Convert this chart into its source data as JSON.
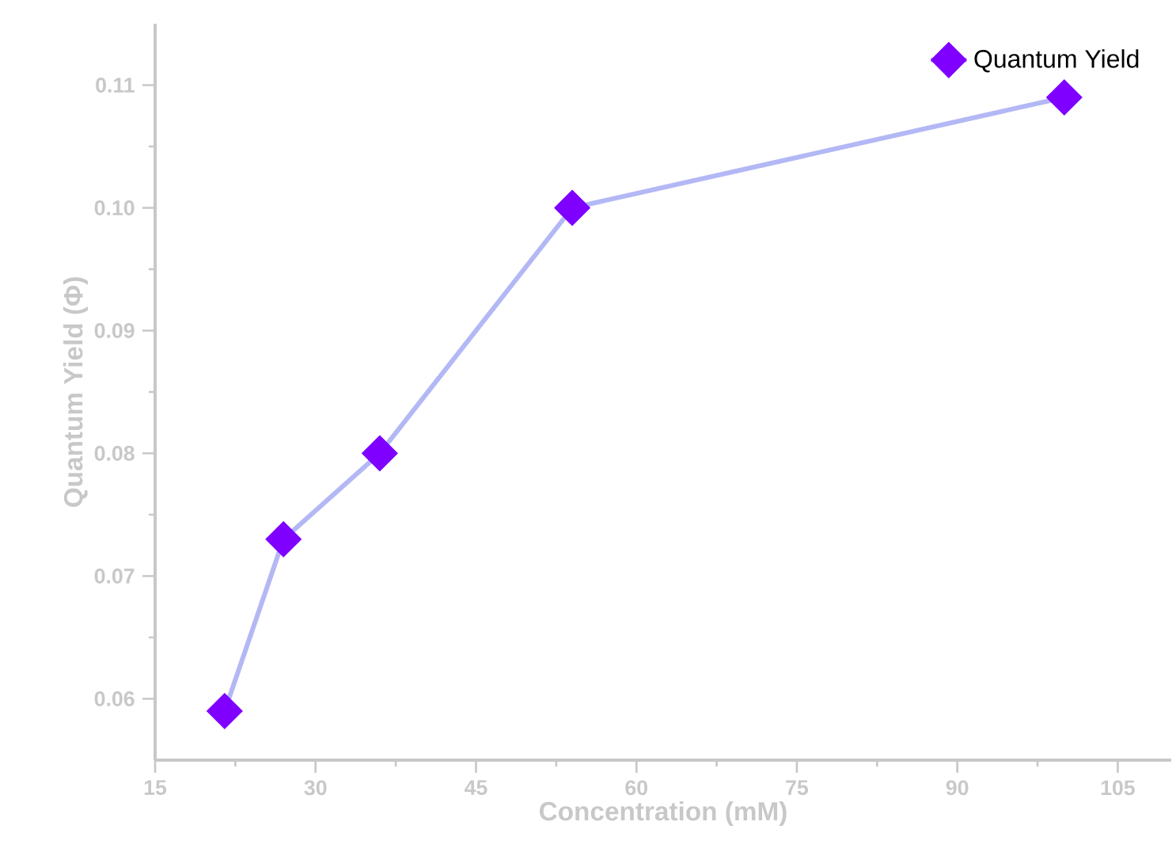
{
  "chart_data": {
    "type": "line",
    "xlabel": "Concentration (mM)",
    "ylabel": "Quantum Yield (Φ)",
    "x": [
      21.5,
      27,
      36,
      54,
      100
    ],
    "series": [
      {
        "type": "scatter",
        "color": "#7f00ff",
        "values": [
          0.059,
          0.073,
          0.08,
          0.1,
          0.109
        ]
      },
      {
        "name": "Quantum Yield",
        "color": "#b3b8f5",
        "values": [
          0.059,
          0.073,
          0.08,
          0.1,
          0.109
        ]
      }
    ],
    "marker": "diamond",
    "xlim": [
      15,
      110
    ],
    "xticks": [
      15,
      30,
      45,
      60,
      75,
      90,
      105
    ],
    "ylim": [
      0.055,
      0.115
    ],
    "yticks": [
      {
        "value": 0.06,
        "label": "0.06"
      },
      {
        "value": 0.07,
        "label": "0.07"
      },
      {
        "value": 0.08,
        "label": "0.08"
      },
      {
        "value": 0.09,
        "label": "0.09"
      },
      {
        "value": 0.1,
        "label": "0.10"
      },
      {
        "value": 0.11,
        "label": "0.11"
      }
    ],
    "legend": "top right",
    "grid": false
  }
}
